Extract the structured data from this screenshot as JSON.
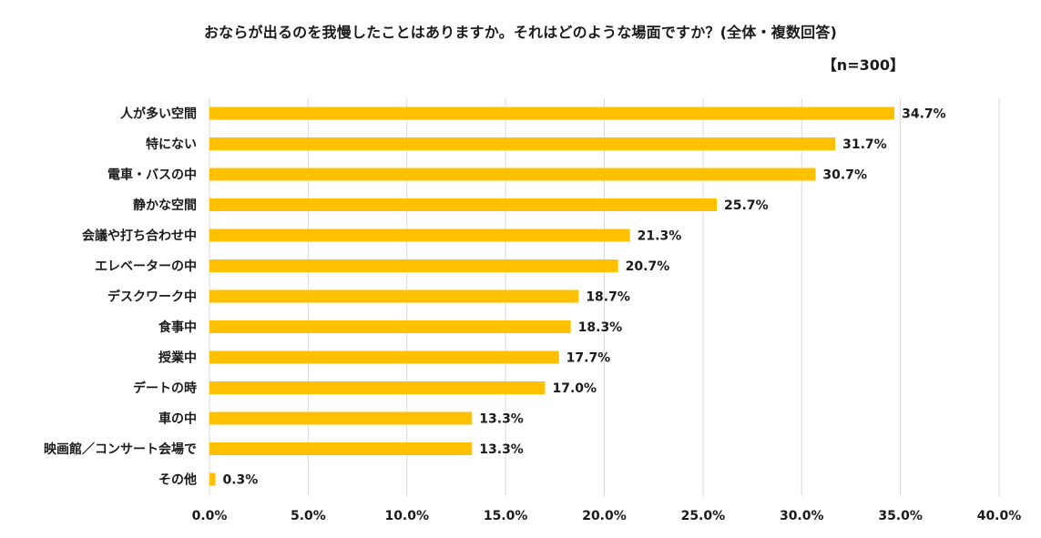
{
  "chart_data": {
    "type": "bar",
    "orientation": "horizontal",
    "title": "おならが出るのを我慢したことはありますか。それはどのような場面ですか？(全体・複数回答)",
    "subtitle": "【n=300】",
    "categories": [
      "人が多い空間",
      "特にない",
      "電車・バスの中",
      "静かな空間",
      "会議や打ち合わせ中",
      "エレベーターの中",
      "デスクワーク中",
      "食事中",
      "授業中",
      "デートの時",
      "車の中",
      "映画館／コンサート会場で",
      "その他"
    ],
    "values": [
      34.7,
      31.7,
      30.7,
      25.7,
      21.3,
      20.7,
      18.7,
      18.3,
      17.7,
      17.0,
      13.3,
      13.3,
      0.3
    ],
    "value_labels": [
      "34.7%",
      "31.7%",
      "30.7%",
      "25.7%",
      "21.3%",
      "20.7%",
      "18.7%",
      "18.3%",
      "17.7%",
      "17.0%",
      "13.3%",
      "13.3%",
      "0.3%"
    ],
    "x_ticks": [
      0,
      5,
      10,
      15,
      20,
      25,
      30,
      35,
      40
    ],
    "x_tick_labels": [
      "0.0%",
      "5.0%",
      "10.0%",
      "15.0%",
      "20.0%",
      "25.0%",
      "30.0%",
      "35.0%",
      "40.0%"
    ],
    "xlim": [
      0,
      40
    ],
    "xlabel": "",
    "ylabel": "",
    "grid": "vertical",
    "legend": "none",
    "colors": {
      "bar": "#FFC000",
      "grid": "#D9D9D9",
      "text": "#1A1A1A"
    }
  }
}
